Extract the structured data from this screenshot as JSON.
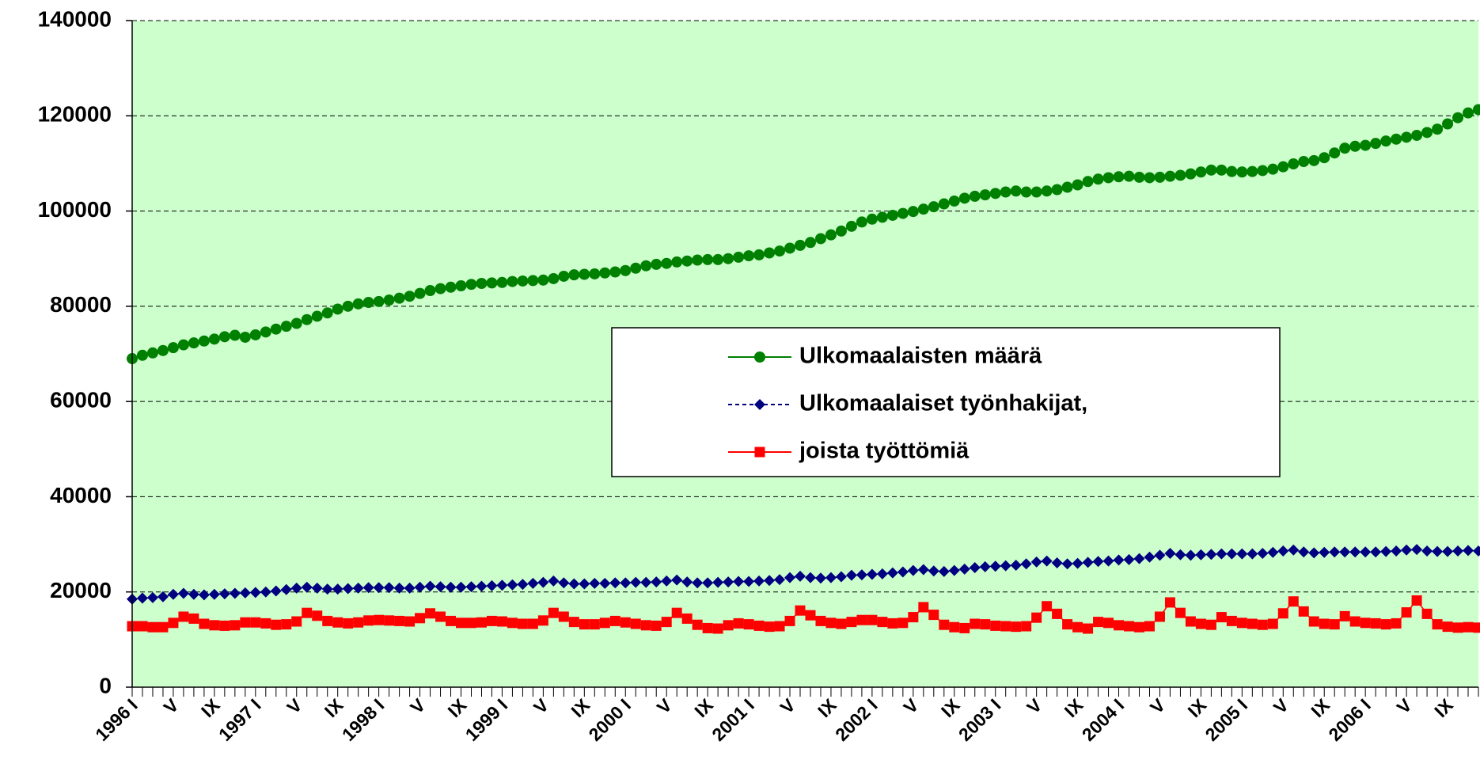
{
  "chart_data": {
    "type": "line",
    "categories": [
      "1996 I",
      null,
      null,
      null,
      "V",
      null,
      null,
      null,
      "IX",
      null,
      null,
      null,
      "1997 I",
      null,
      null,
      null,
      "V",
      null,
      null,
      null,
      "IX",
      null,
      null,
      null,
      "1998 I",
      null,
      null,
      null,
      "V",
      null,
      null,
      null,
      "IX",
      null,
      null,
      null,
      "1999 I",
      null,
      null,
      null,
      "V",
      null,
      null,
      null,
      "IX",
      null,
      null,
      null,
      "2000 I",
      null,
      null,
      null,
      "V",
      null,
      null,
      null,
      "IX",
      null,
      null,
      null,
      "2001 I",
      null,
      null,
      null,
      "V",
      null,
      null,
      null,
      "IX",
      null,
      null,
      null,
      "2002 I",
      null,
      null,
      null,
      "V",
      null,
      null,
      null,
      "IX",
      null,
      null,
      null,
      "2003 I",
      null,
      null,
      null,
      "V",
      null,
      null,
      null,
      "IX",
      null,
      null,
      null,
      "2004 I",
      null,
      null,
      null,
      "V",
      null,
      null,
      null,
      "IX",
      null,
      null,
      null,
      "2005 I",
      null,
      null,
      null,
      "V",
      null,
      null,
      null,
      "IX",
      null,
      null,
      null,
      "2006 I",
      null,
      null,
      null,
      "V",
      null,
      null,
      null,
      "IX",
      null,
      null,
      null
    ],
    "series": [
      {
        "name": "Ulkomaalaisten määrä",
        "color": "#008000",
        "marker": "circle",
        "values": [
          69000,
          69700,
          70200,
          70700,
          71300,
          71900,
          72300,
          72700,
          73100,
          73600,
          73900,
          73500,
          74000,
          74600,
          75200,
          75800,
          76400,
          77200,
          77900,
          78600,
          79400,
          80000,
          80500,
          80800,
          81000,
          81300,
          81700,
          82100,
          82700,
          83300,
          83700,
          84000,
          84300,
          84600,
          84800,
          84900,
          85000,
          85200,
          85300,
          85400,
          85500,
          85800,
          86300,
          86600,
          86700,
          86800,
          87000,
          87200,
          87500,
          88000,
          88500,
          88800,
          89000,
          89300,
          89500,
          89700,
          89800,
          89800,
          90000,
          90300,
          90600,
          90800,
          91200,
          91600,
          92200,
          92800,
          93400,
          94200,
          95000,
          95800,
          96800,
          97700,
          98300,
          98700,
          99100,
          99500,
          99900,
          100400,
          100900,
          101500,
          102100,
          102700,
          103100,
          103400,
          103700,
          104000,
          104200,
          104000,
          104000,
          104200,
          104500,
          105000,
          105500,
          106200,
          106700,
          107000,
          107200,
          107300,
          107100,
          107000,
          107100,
          107300,
          107500,
          107800,
          108200,
          108600,
          108600,
          108300,
          108200,
          108300,
          108500,
          108800,
          109300,
          109900,
          110400,
          110600,
          111200,
          112200,
          113200,
          113600,
          113800,
          114200,
          114700,
          115100,
          115500,
          115900,
          116500,
          117200,
          118300,
          119600,
          120600,
          121300
        ]
      },
      {
        "name": "Ulkomaalaiset työnhakijat,",
        "color": "#000080",
        "marker": "diamond",
        "dashed": true,
        "values": [
          18500,
          18700,
          18800,
          19000,
          19500,
          19700,
          19500,
          19400,
          19500,
          19600,
          19700,
          19800,
          19900,
          20000,
          20200,
          20500,
          20800,
          21000,
          20800,
          20600,
          20600,
          20700,
          20800,
          20900,
          20900,
          20900,
          20800,
          20800,
          21000,
          21200,
          21100,
          21000,
          21000,
          21100,
          21200,
          21300,
          21400,
          21500,
          21600,
          21800,
          22000,
          22300,
          21900,
          21700,
          21700,
          21800,
          21800,
          21900,
          21900,
          22000,
          22000,
          22100,
          22300,
          22500,
          22100,
          21900,
          21900,
          22000,
          22100,
          22200,
          22200,
          22300,
          22400,
          22600,
          23000,
          23300,
          23000,
          22900,
          23000,
          23200,
          23500,
          23600,
          23700,
          23800,
          24000,
          24200,
          24500,
          24700,
          24400,
          24300,
          24500,
          24800,
          25100,
          25300,
          25400,
          25500,
          25600,
          25900,
          26300,
          26500,
          26100,
          25900,
          26000,
          26200,
          26400,
          26500,
          26700,
          26800,
          27000,
          27300,
          27700,
          28100,
          27800,
          27700,
          27800,
          27900,
          28000,
          28000,
          28000,
          28000,
          28100,
          28300,
          28600,
          28800,
          28400,
          28200,
          28300,
          28400,
          28400,
          28400,
          28400,
          28400,
          28500,
          28600,
          28800,
          28900,
          28600,
          28500,
          28500,
          28600,
          28700,
          28600
        ]
      },
      {
        "name": "joista työttömiä",
        "color": "#ff0000",
        "marker": "square",
        "values": [
          12800,
          12800,
          12600,
          12600,
          13500,
          14800,
          14400,
          13300,
          13000,
          12900,
          13000,
          13600,
          13600,
          13400,
          13100,
          13200,
          13800,
          15600,
          15000,
          13900,
          13600,
          13400,
          13600,
          14000,
          14100,
          14000,
          13900,
          13800,
          14500,
          15500,
          14800,
          13900,
          13500,
          13500,
          13600,
          13900,
          13800,
          13500,
          13300,
          13300,
          14000,
          15600,
          14800,
          13700,
          13200,
          13200,
          13500,
          13900,
          13600,
          13300,
          13000,
          12900,
          13700,
          15600,
          14400,
          13100,
          12400,
          12300,
          13000,
          13400,
          13200,
          12900,
          12700,
          12800,
          13900,
          16100,
          15100,
          13900,
          13500,
          13300,
          13700,
          14100,
          14100,
          13700,
          13400,
          13500,
          14700,
          16800,
          15200,
          13100,
          12600,
          12400,
          13300,
          13200,
          12900,
          12800,
          12700,
          12800,
          14600,
          17000,
          15400,
          13200,
          12600,
          12300,
          13700,
          13500,
          13000,
          12800,
          12600,
          12800,
          14800,
          17800,
          15600,
          13800,
          13300,
          13100,
          14700,
          13900,
          13500,
          13300,
          13100,
          13300,
          15500,
          18000,
          15900,
          13800,
          13300,
          13200,
          14900,
          13800,
          13500,
          13400,
          13200,
          13400,
          15700,
          18200,
          15400,
          13200,
          12700,
          12500,
          12600,
          12500
        ]
      }
    ],
    "ylim": [
      0,
      140000
    ],
    "yticks": [
      0,
      20000,
      40000,
      60000,
      80000,
      100000,
      120000,
      140000
    ],
    "grid": true,
    "background": "#ccffcc"
  }
}
